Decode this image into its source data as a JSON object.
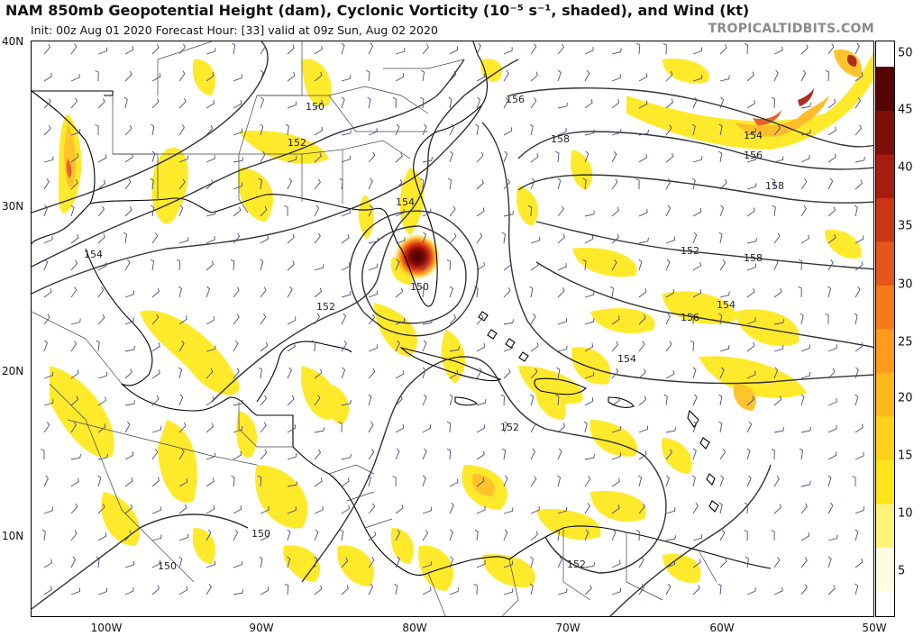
{
  "header": {
    "title": "NAM 850mb Geopotential Height (dam), Cyclonic Vorticity (10⁻⁵ s⁻¹, shaded), and Wind (kt)",
    "subtitle": "Init: 00z Aug 01 2020   Forecast Hour: [33]   valid at 09z Sun, Aug 02 2020",
    "brand": "TROPICALTIDBITS.COM"
  },
  "axes": {
    "lat_ticks": [
      "40N",
      "30N",
      "20N",
      "10N"
    ],
    "lon_ticks": [
      "100W",
      "90W",
      "80W",
      "70W",
      "60W",
      "50W"
    ]
  },
  "colorbar": {
    "labels": [
      "50",
      "45",
      "40",
      "35",
      "30",
      "25",
      "20",
      "15",
      "10",
      "5"
    ],
    "colors": [
      "#fffde0",
      "#fff27a",
      "#ffe51a",
      "#ffd21a",
      "#ffb81a",
      "#ff9b1a",
      "#f57a1a",
      "#e5561a",
      "#cc3514",
      "#a81c10",
      "#7e0e08",
      "#560404"
    ]
  },
  "contours": {
    "labels": [
      "150",
      "152",
      "154",
      "156",
      "158",
      "158",
      "156",
      "154",
      "152",
      "150",
      "152",
      "154",
      "156",
      "154",
      "152",
      "150",
      "152",
      "154",
      "158",
      "150"
    ]
  },
  "feature": {
    "name": "cyclone-center",
    "lat": 27.0,
    "lon": -79.8
  }
}
